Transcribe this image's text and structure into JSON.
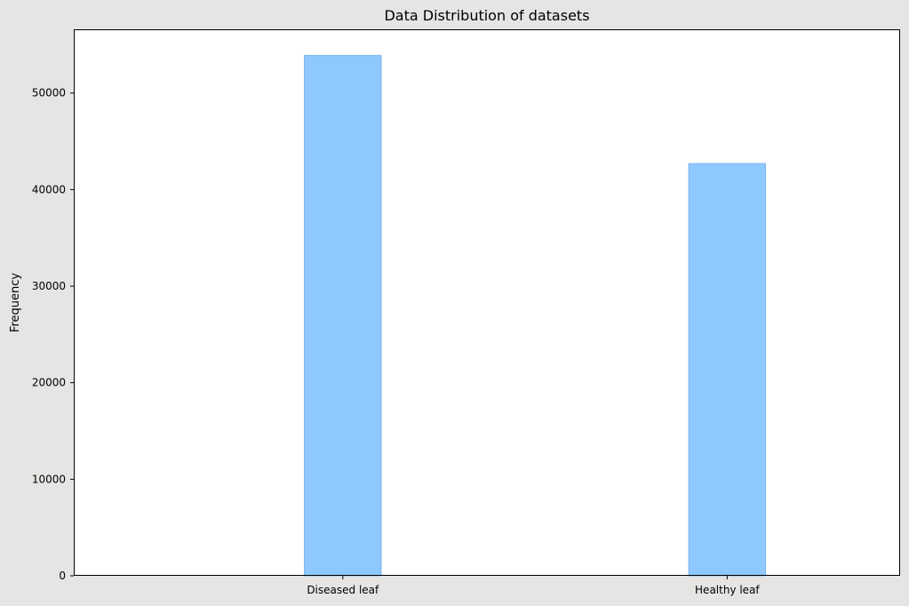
{
  "chart_data": {
    "type": "bar",
    "title": "Data Distribution of datasets",
    "xlabel": "",
    "ylabel": "Frequency",
    "categories": [
      "Diseased leaf",
      "Healthy leaf"
    ],
    "values": [
      53900,
      42700
    ],
    "ylim": [
      0,
      56600
    ],
    "yticks": [
      0,
      10000,
      20000,
      30000,
      40000,
      50000
    ],
    "ytick_labels": [
      "0",
      "10000",
      "20000",
      "30000",
      "40000",
      "50000"
    ],
    "xlim": [
      -0.7,
      1.45
    ],
    "grid": false,
    "legend": "none",
    "bar_color": "#8fc8ff",
    "bar_edge_color": "#7fb6ee",
    "background_color": "#e6e5e3",
    "plot_background_color": "#ffffff"
  }
}
